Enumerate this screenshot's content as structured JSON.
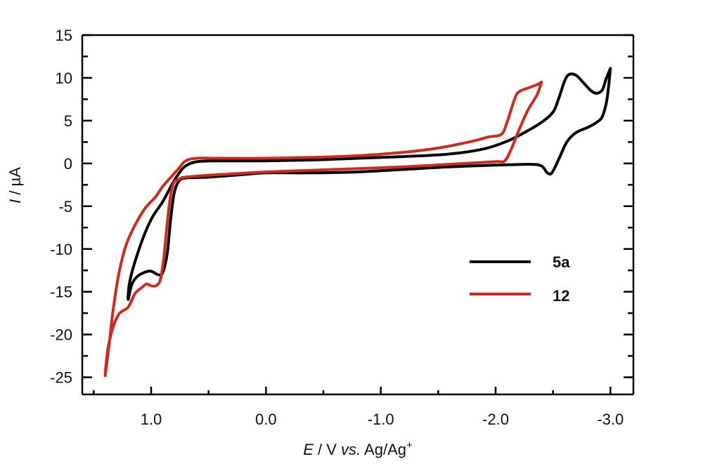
{
  "chart_data": {
    "type": "line",
    "title": "",
    "xlabel": {
      "var": "E",
      "rest": " / V ",
      "vs": "vs.",
      "ref": " Ag/Ag",
      "sup": "+"
    },
    "ylabel": {
      "var": "I",
      "rest": " / µA"
    },
    "xlim": [
      1.6,
      -3.2
    ],
    "ylim": [
      -27,
      15
    ],
    "x_ticks": [
      1.0,
      0.0,
      -1.0,
      -2.0,
      -3.0
    ],
    "x_tick_labels": [
      "1.0",
      "0.0",
      "-1.0",
      "-2.0",
      "-3.0"
    ],
    "x_minor_ticks": [
      1.5,
      0.5,
      -0.5,
      -1.5,
      -2.5
    ],
    "y_ticks": [
      15,
      10,
      5,
      0,
      -5,
      -10,
      -15,
      -20,
      -25
    ],
    "y_tick_labels": [
      "15",
      "10",
      "5",
      "0",
      "-5",
      "-10",
      "-15",
      "-20",
      "-25"
    ],
    "y_minor_ticks": [
      12.5,
      7.5,
      2.5,
      -2.5,
      -7.5,
      -12.5,
      -17.5,
      -22.5,
      -25.0
    ],
    "grid": false,
    "legend_position": "center-right",
    "series": [
      {
        "name": "5a",
        "color": "#000000",
        "points": [
          [
            -3.0,
            11.1
          ],
          [
            -2.96,
            9.8
          ],
          [
            -2.93,
            8.6
          ],
          [
            -2.88,
            8.2
          ],
          [
            -2.83,
            8.5
          ],
          [
            -2.76,
            9.5
          ],
          [
            -2.7,
            10.3
          ],
          [
            -2.64,
            10.4
          ],
          [
            -2.6,
            9.6
          ],
          [
            -2.55,
            7.6
          ],
          [
            -2.5,
            6.0
          ],
          [
            -2.4,
            4.8
          ],
          [
            -2.25,
            3.6
          ],
          [
            -2.1,
            2.6
          ],
          [
            -1.9,
            1.7
          ],
          [
            -1.6,
            1.1
          ],
          [
            -1.2,
            0.8
          ],
          [
            -0.8,
            0.6
          ],
          [
            -0.4,
            0.4
          ],
          [
            0.0,
            0.3
          ],
          [
            0.4,
            0.3
          ],
          [
            0.6,
            0.2
          ],
          [
            0.7,
            -0.3
          ],
          [
            0.76,
            -1.2
          ],
          [
            0.82,
            -2.5
          ],
          [
            0.9,
            -4.5
          ],
          [
            0.99,
            -6.3
          ],
          [
            1.07,
            -8.7
          ],
          [
            1.15,
            -11.9
          ],
          [
            1.19,
            -14.1
          ],
          [
            1.2,
            -15.9
          ],
          [
            1.17,
            -14.2
          ],
          [
            1.12,
            -13.2
          ],
          [
            1.05,
            -12.7
          ],
          [
            1.0,
            -12.6
          ],
          [
            0.94,
            -13.0
          ],
          [
            0.9,
            -12.8
          ],
          [
            0.86,
            -10.5
          ],
          [
            0.83,
            -6.5
          ],
          [
            0.8,
            -3.5
          ],
          [
            0.76,
            -2.1
          ],
          [
            0.7,
            -1.7
          ],
          [
            0.5,
            -1.6
          ],
          [
            0.2,
            -1.3
          ],
          [
            0.0,
            -1.1
          ],
          [
            -0.4,
            -1.1
          ],
          [
            -0.8,
            -1.0
          ],
          [
            -1.2,
            -0.7
          ],
          [
            -1.6,
            -0.4
          ],
          [
            -2.0,
            -0.2
          ],
          [
            -2.3,
            -0.1
          ],
          [
            -2.4,
            -0.3
          ],
          [
            -2.45,
            -1.1
          ],
          [
            -2.49,
            -1.1
          ],
          [
            -2.55,
            0.5
          ],
          [
            -2.62,
            2.5
          ],
          [
            -2.7,
            3.6
          ],
          [
            -2.8,
            4.2
          ],
          [
            -2.88,
            4.8
          ],
          [
            -2.93,
            5.5
          ],
          [
            -2.97,
            7.5
          ],
          [
            -3.0,
            11.1
          ]
        ]
      },
      {
        "name": "12",
        "color": "#d02a1f",
        "points": [
          [
            -2.4,
            9.5
          ],
          [
            -2.36,
            9.2
          ],
          [
            -2.28,
            8.8
          ],
          [
            -2.22,
            8.5
          ],
          [
            -2.18,
            8.0
          ],
          [
            -2.14,
            6.5
          ],
          [
            -2.1,
            4.8
          ],
          [
            -2.05,
            3.4
          ],
          [
            -1.94,
            3.1
          ],
          [
            -1.8,
            2.6
          ],
          [
            -1.5,
            1.8
          ],
          [
            -1.2,
            1.3
          ],
          [
            -0.8,
            0.9
          ],
          [
            -0.4,
            0.7
          ],
          [
            0.0,
            0.6
          ],
          [
            0.4,
            0.6
          ],
          [
            0.6,
            0.6
          ],
          [
            0.7,
            0.3
          ],
          [
            0.76,
            -0.6
          ],
          [
            0.82,
            -1.5
          ],
          [
            0.9,
            -2.7
          ],
          [
            0.96,
            -3.9
          ],
          [
            1.05,
            -5.2
          ],
          [
            1.14,
            -7.2
          ],
          [
            1.22,
            -9.6
          ],
          [
            1.28,
            -12.8
          ],
          [
            1.33,
            -17.0
          ],
          [
            1.36,
            -20.5
          ],
          [
            1.4,
            -24.8
          ],
          [
            1.38,
            -22.0
          ],
          [
            1.34,
            -19.5
          ],
          [
            1.28,
            -17.6
          ],
          [
            1.2,
            -16.8
          ],
          [
            1.14,
            -15.2
          ],
          [
            1.08,
            -14.5
          ],
          [
            1.04,
            -14.1
          ],
          [
            1.0,
            -14.3
          ],
          [
            0.96,
            -14.3
          ],
          [
            0.92,
            -13.6
          ],
          [
            0.89,
            -11.0
          ],
          [
            0.86,
            -7.0
          ],
          [
            0.83,
            -3.7
          ],
          [
            0.8,
            -2.2
          ],
          [
            0.76,
            -1.9
          ],
          [
            0.7,
            -1.6
          ],
          [
            0.4,
            -1.3
          ],
          [
            0.0,
            -1.0
          ],
          [
            -0.4,
            -0.8
          ],
          [
            -0.8,
            -0.6
          ],
          [
            -1.2,
            -0.4
          ],
          [
            -1.6,
            -0.1
          ],
          [
            -2.0,
            0.2
          ],
          [
            -2.08,
            0.3
          ],
          [
            -2.14,
            1.8
          ],
          [
            -2.2,
            3.8
          ],
          [
            -2.28,
            6.2
          ],
          [
            -2.36,
            8.0
          ],
          [
            -2.4,
            9.5
          ]
        ]
      }
    ]
  }
}
